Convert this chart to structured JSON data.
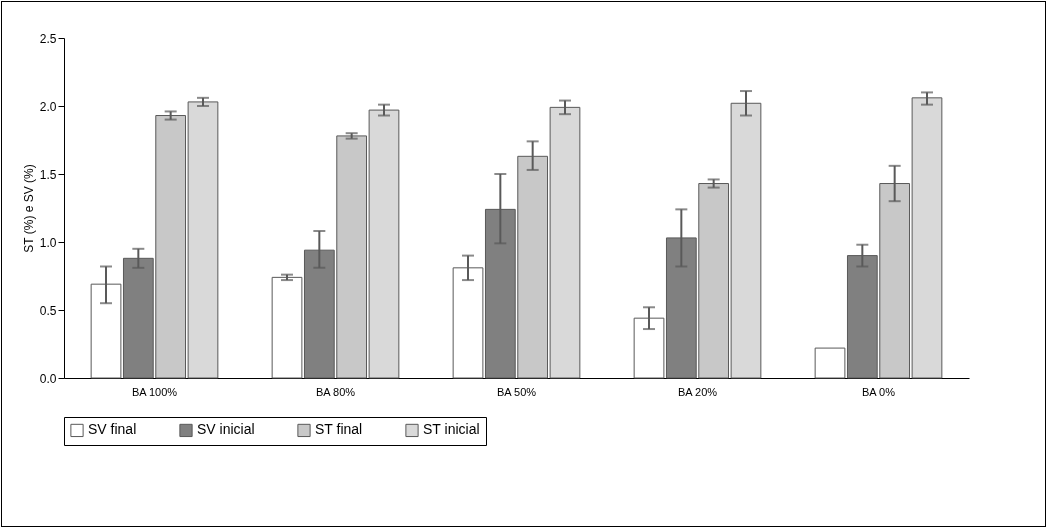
{
  "chart_data": {
    "type": "bar",
    "ylabel": "ST (%) e SV (%)",
    "categories": [
      "BA 100%",
      "BA 80%",
      "BA 50%",
      "BA 20%",
      "BA 0%"
    ],
    "series": [
      {
        "name": "SV final",
        "color": "#ffffff",
        "values": [
          0.69,
          0.74,
          0.81,
          0.44,
          0.22
        ],
        "errors": [
          [
            0.55,
            0.82
          ],
          [
            0.72,
            0.76
          ],
          [
            0.72,
            0.9
          ],
          [
            0.36,
            0.52
          ],
          null
        ]
      },
      {
        "name": "SV inicial",
        "color": "#808080",
        "values": [
          0.88,
          0.94,
          1.24,
          1.03,
          0.9
        ],
        "errors": [
          [
            0.81,
            0.95
          ],
          [
            0.81,
            1.08
          ],
          [
            0.99,
            1.5
          ],
          [
            0.82,
            1.24
          ],
          [
            0.82,
            0.98
          ]
        ]
      },
      {
        "name": "ST final",
        "color": "#c8c8c8",
        "values": [
          1.93,
          1.78,
          1.63,
          1.43,
          1.43
        ],
        "errors": [
          [
            1.9,
            1.96
          ],
          [
            1.76,
            1.8
          ],
          [
            1.53,
            1.74
          ],
          [
            1.4,
            1.46
          ],
          [
            1.3,
            1.56
          ]
        ]
      },
      {
        "name": "ST inicial",
        "color": "#d9d9d9",
        "values": [
          2.03,
          1.97,
          1.99,
          2.02,
          2.06
        ],
        "errors": [
          [
            2.0,
            2.06
          ],
          [
            1.93,
            2.01
          ],
          [
            1.94,
            2.04
          ],
          [
            1.93,
            2.11
          ],
          [
            2.01,
            2.1
          ]
        ]
      }
    ],
    "ylim": [
      0,
      2.5
    ],
    "yticks": [
      {
        "value": 0,
        "label": "0.0"
      },
      {
        "value": 0.5,
        "label": "0.5"
      },
      {
        "value": 1,
        "label": "1.0"
      },
      {
        "value": 1.5,
        "label": "1.5"
      },
      {
        "value": 2,
        "label": "2.0"
      },
      {
        "value": 2.5,
        "label": "2.5"
      }
    ],
    "grid": false,
    "legend": "bottom"
  }
}
